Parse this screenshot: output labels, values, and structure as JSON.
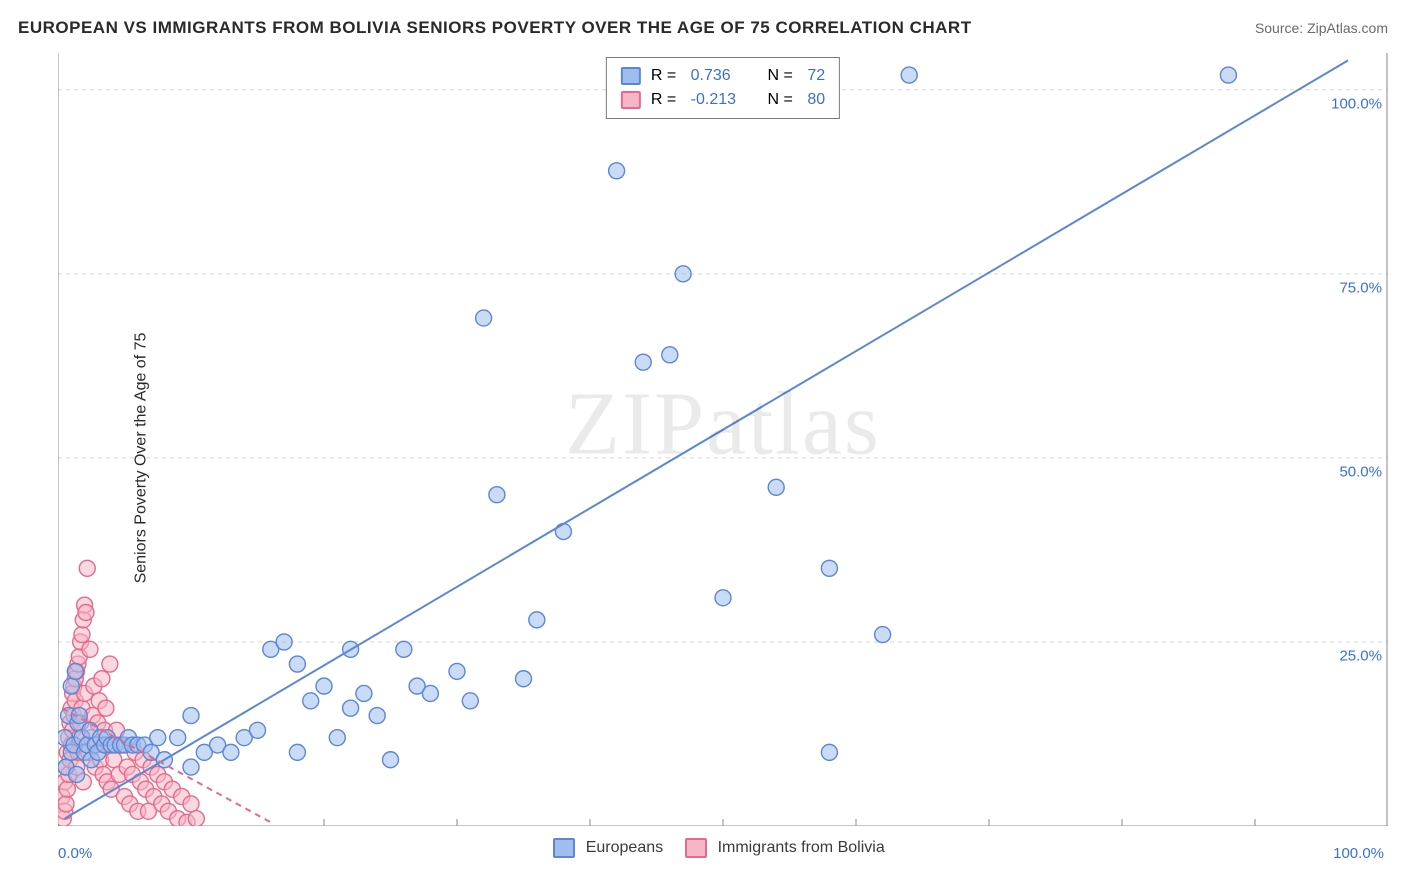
{
  "header": {
    "title": "EUROPEAN VS IMMIGRANTS FROM BOLIVIA SENIORS POVERTY OVER THE AGE OF 75 CORRELATION CHART",
    "source": "Source: ZipAtlas.com"
  },
  "watermark": "ZIPatlas",
  "chart": {
    "type": "scatter",
    "y_axis_title": "Seniors Poverty Over the Age of 75",
    "xlim": [
      0,
      100
    ],
    "ylim": [
      0,
      105
    ],
    "x_tick_label_min": "0.0%",
    "x_tick_label_max": "100.0%",
    "y_ticks": [
      25,
      50,
      75,
      100
    ],
    "y_tick_labels": [
      "25.0%",
      "50.0%",
      "75.0%",
      "100.0%"
    ],
    "x_minor_ticks": [
      10,
      20,
      30,
      40,
      50,
      60,
      70,
      80,
      90
    ],
    "grid_color": "#d7d7d7",
    "axis_color": "#8a8a8a",
    "background_color": "#ffffff",
    "marker_radius": 8,
    "marker_stroke_width": 1.4,
    "trend_line_width": 2,
    "series": [
      {
        "name": "Europeans",
        "fill": "#9fbeee",
        "stroke": "#5c86d6",
        "fill_opacity": 0.55,
        "points": [
          [
            0.5,
            12
          ],
          [
            0.6,
            8
          ],
          [
            0.8,
            15
          ],
          [
            1.0,
            19
          ],
          [
            1.0,
            10
          ],
          [
            1.2,
            11
          ],
          [
            1.3,
            21
          ],
          [
            1.4,
            7
          ],
          [
            1.5,
            14
          ],
          [
            1.6,
            15
          ],
          [
            1.8,
            12
          ],
          [
            2.0,
            10
          ],
          [
            2.2,
            11
          ],
          [
            2.4,
            13
          ],
          [
            2.5,
            9
          ],
          [
            2.8,
            11
          ],
          [
            3.0,
            10
          ],
          [
            3.2,
            12
          ],
          [
            3.5,
            11
          ],
          [
            3.7,
            12
          ],
          [
            4.0,
            11
          ],
          [
            4.3,
            11
          ],
          [
            4.7,
            11
          ],
          [
            5.0,
            11
          ],
          [
            5.3,
            12
          ],
          [
            5.6,
            11
          ],
          [
            6.0,
            11
          ],
          [
            6.5,
            11
          ],
          [
            7.0,
            10
          ],
          [
            7.5,
            12
          ],
          [
            8,
            9
          ],
          [
            9,
            12
          ],
          [
            10,
            8
          ],
          [
            10,
            15
          ],
          [
            11,
            10
          ],
          [
            12,
            11
          ],
          [
            13,
            10
          ],
          [
            14,
            12
          ],
          [
            15,
            13
          ],
          [
            16,
            24
          ],
          [
            17,
            25
          ],
          [
            18,
            22
          ],
          [
            18,
            10
          ],
          [
            19,
            17
          ],
          [
            20,
            19
          ],
          [
            21,
            12
          ],
          [
            22,
            24
          ],
          [
            22,
            16
          ],
          [
            23,
            18
          ],
          [
            24,
            15
          ],
          [
            25,
            9
          ],
          [
            26,
            24
          ],
          [
            27,
            19
          ],
          [
            28,
            18
          ],
          [
            30,
            21
          ],
          [
            31,
            17
          ],
          [
            32,
            69
          ],
          [
            33,
            45
          ],
          [
            35,
            20
          ],
          [
            36,
            28
          ],
          [
            38,
            40
          ],
          [
            42,
            89
          ],
          [
            44,
            63
          ],
          [
            46,
            64
          ],
          [
            47,
            75
          ],
          [
            50,
            31
          ],
          [
            54,
            46
          ],
          [
            58,
            35
          ],
          [
            58,
            10
          ],
          [
            62,
            26
          ],
          [
            64,
            102
          ],
          [
            88,
            102
          ]
        ],
        "trend": {
          "x1": 0.5,
          "y1": 1,
          "x2": 97,
          "y2": 104
        },
        "correlation": {
          "R": "0.736",
          "N": "72"
        }
      },
      {
        "name": "Immigrants from Bolivia",
        "fill": "#f7b6c5",
        "stroke": "#e76a8a",
        "fill_opacity": 0.55,
        "points": [
          [
            0.3,
            4
          ],
          [
            0.4,
            1
          ],
          [
            0.5,
            6
          ],
          [
            0.5,
            2
          ],
          [
            0.6,
            8
          ],
          [
            0.6,
            3
          ],
          [
            0.7,
            10
          ],
          [
            0.7,
            5
          ],
          [
            0.8,
            12
          ],
          [
            0.8,
            7
          ],
          [
            0.9,
            9
          ],
          [
            0.9,
            14
          ],
          [
            1.0,
            11
          ],
          [
            1.0,
            16
          ],
          [
            1.1,
            13
          ],
          [
            1.1,
            18
          ],
          [
            1.2,
            15
          ],
          [
            1.2,
            19
          ],
          [
            1.3,
            17
          ],
          [
            1.3,
            20
          ],
          [
            1.4,
            21
          ],
          [
            1.4,
            8
          ],
          [
            1.5,
            22
          ],
          [
            1.5,
            10
          ],
          [
            1.6,
            23
          ],
          [
            1.6,
            12
          ],
          [
            1.7,
            25
          ],
          [
            1.7,
            14
          ],
          [
            1.8,
            26
          ],
          [
            1.8,
            16
          ],
          [
            1.9,
            28
          ],
          [
            1.9,
            6
          ],
          [
            2.0,
            30
          ],
          [
            2.0,
            18
          ],
          [
            2.1,
            29
          ],
          [
            2.2,
            35
          ],
          [
            2.3,
            10
          ],
          [
            2.4,
            24
          ],
          [
            2.5,
            12
          ],
          [
            2.6,
            15
          ],
          [
            2.7,
            19
          ],
          [
            2.8,
            8
          ],
          [
            2.9,
            11
          ],
          [
            3.0,
            14
          ],
          [
            3.1,
            17
          ],
          [
            3.2,
            9
          ],
          [
            3.3,
            20
          ],
          [
            3.4,
            7
          ],
          [
            3.5,
            13
          ],
          [
            3.6,
            16
          ],
          [
            3.7,
            6
          ],
          [
            3.8,
            11
          ],
          [
            3.9,
            22
          ],
          [
            4.0,
            5
          ],
          [
            4.2,
            9
          ],
          [
            4.4,
            13
          ],
          [
            4.6,
            7
          ],
          [
            4.8,
            11
          ],
          [
            5.0,
            4
          ],
          [
            5.2,
            8
          ],
          [
            5.4,
            3
          ],
          [
            5.6,
            7
          ],
          [
            5.8,
            10
          ],
          [
            6.0,
            2
          ],
          [
            6.2,
            6
          ],
          [
            6.4,
            9
          ],
          [
            6.6,
            5
          ],
          [
            6.8,
            2
          ],
          [
            7.0,
            8
          ],
          [
            7.2,
            4
          ],
          [
            7.5,
            7
          ],
          [
            7.8,
            3
          ],
          [
            8.0,
            6
          ],
          [
            8.3,
            2
          ],
          [
            8.6,
            5
          ],
          [
            9.0,
            1
          ],
          [
            9.3,
            4
          ],
          [
            9.7,
            0.5
          ],
          [
            10.0,
            3
          ],
          [
            10.4,
            1
          ]
        ],
        "trend": {
          "x1": 0.3,
          "y1": 16,
          "x2": 16,
          "y2": 0.5
        },
        "trend_dash": "6,5",
        "correlation": {
          "R": "-0.213",
          "N": "80"
        }
      }
    ],
    "bottom_legend": [
      {
        "label": "Europeans",
        "fill": "#9fbeee",
        "stroke": "#5c86d6"
      },
      {
        "label": "Immigrants from Bolivia",
        "fill": "#f7b6c5",
        "stroke": "#e76a8a"
      }
    ],
    "corr_box": {
      "label_color": "#3a3a3a",
      "value_color": "#3a6fd8"
    }
  }
}
